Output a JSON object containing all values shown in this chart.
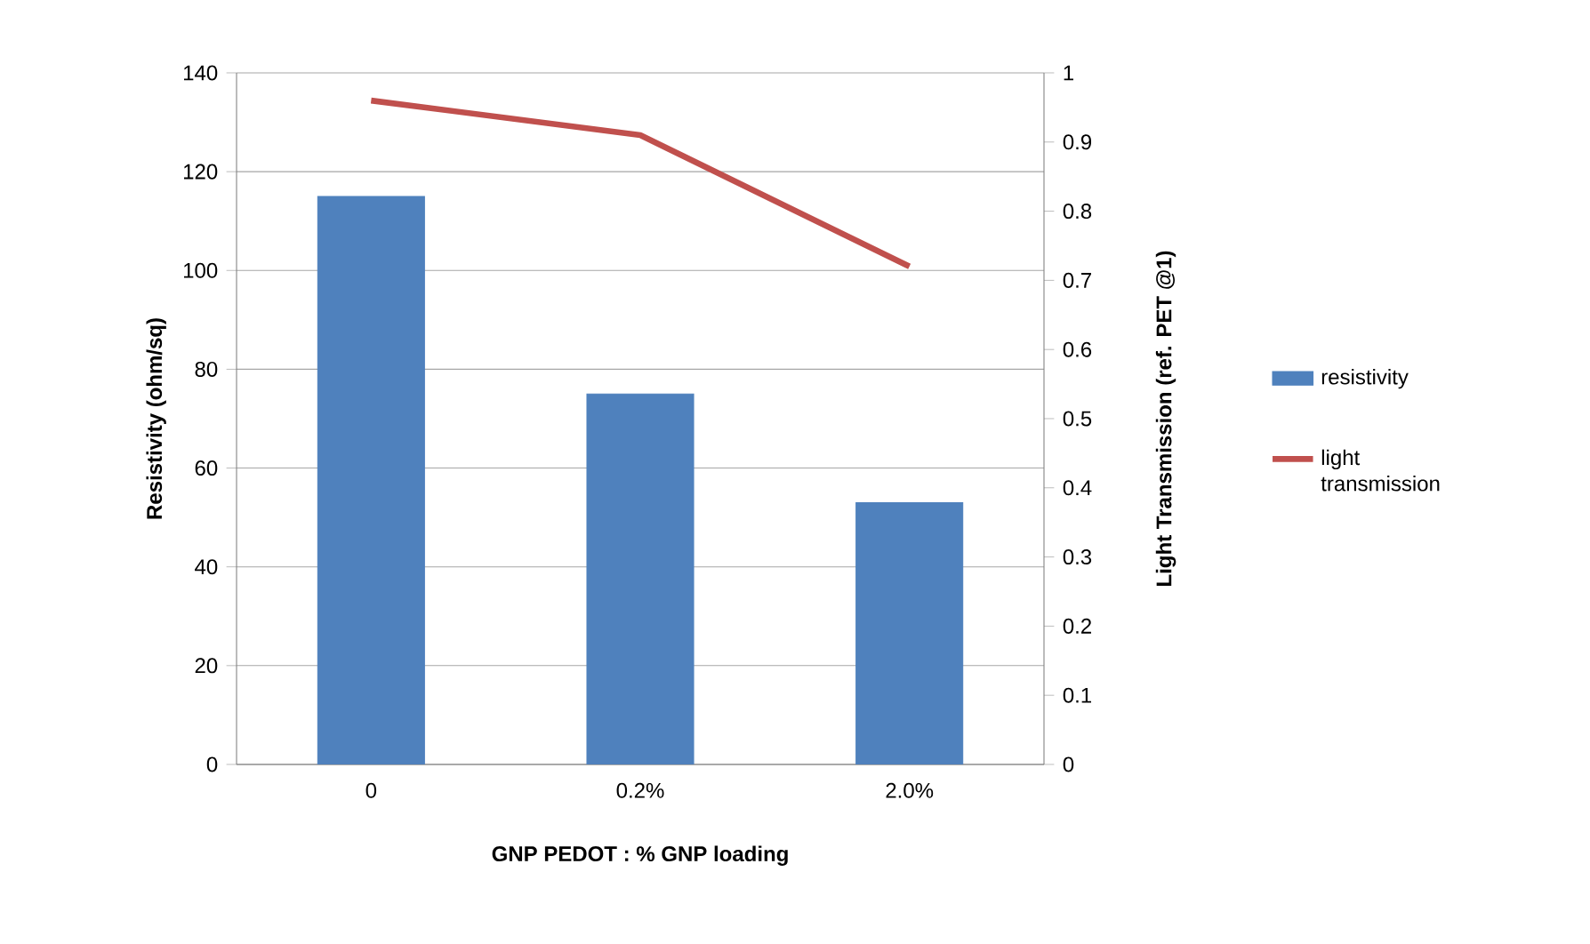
{
  "chart_data": {
    "type": "bar",
    "xlabel": "GNP PEDOT  :  % GNP loading",
    "ylabel": "Resistivity (ohm/sq)",
    "y2label": "Light Transmission  (ref. PET @1)",
    "categories": [
      "0",
      "0.2%",
      "2.0%"
    ],
    "series": [
      {
        "name": "resistivity",
        "color": "#4f81bd",
        "values": [
          115,
          75,
          53
        ]
      },
      {
        "name": "light transmission",
        "type": "line",
        "axis": "y2",
        "color": "#c0504d",
        "values": [
          0.96,
          0.91,
          0.72
        ]
      }
    ],
    "ylim": [
      0,
      140
    ],
    "yticks": [
      0,
      20,
      40,
      60,
      80,
      100,
      120,
      140
    ],
    "y2lim": [
      0,
      1
    ],
    "y2ticks": [
      0,
      0.1,
      0.2,
      0.3,
      0.4,
      0.5,
      0.6,
      0.7,
      0.8,
      0.9,
      1
    ],
    "grid": "y",
    "legend": "right"
  }
}
